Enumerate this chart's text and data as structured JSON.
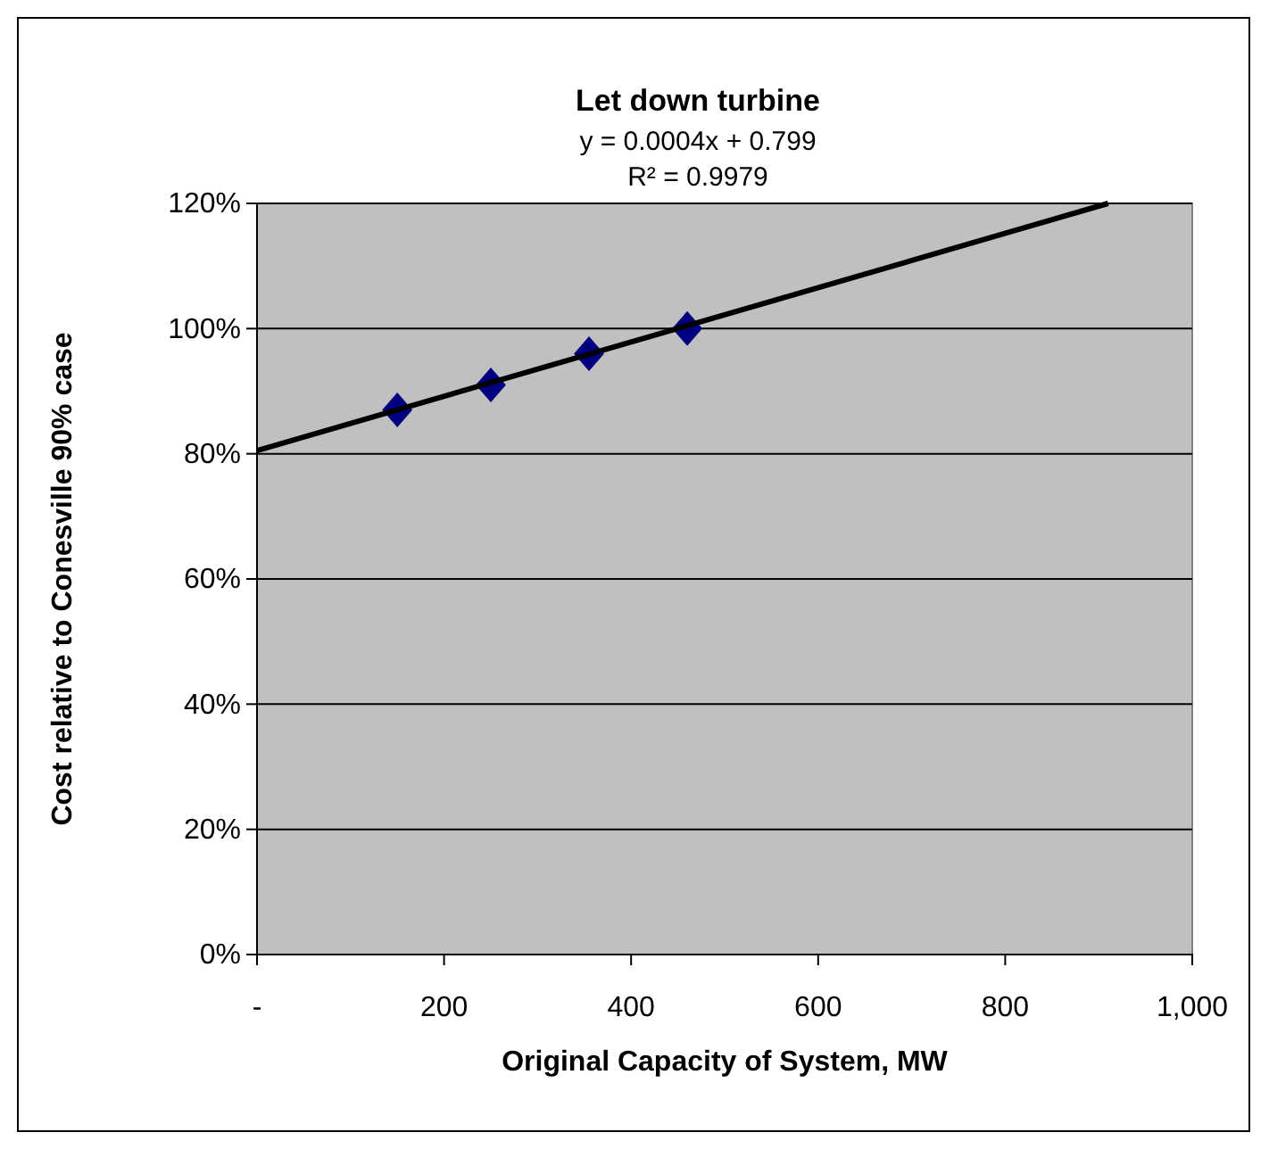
{
  "chart_data": {
    "type": "scatter",
    "title": "Let down turbine",
    "xlabel": "Original Capacity of System, MW",
    "ylabel": "Cost relative to Conesville 90% case",
    "annotations": [
      "y = 0.0004x + 0.799",
      "R² = 0.9979"
    ],
    "x": [
      150,
      250,
      355,
      460
    ],
    "series": [
      {
        "color": "#000080",
        "values": [
          0.87,
          0.91,
          0.96,
          1.0
        ],
        "marker": "diamond"
      },
      {
        "type": "line",
        "color": "#000000",
        "x": [
          0,
          910
        ],
        "values": [
          0.805,
          1.2
        ],
        "marker": "none"
      }
    ],
    "xlim": [
      0,
      1000
    ],
    "xticks": [
      {
        "value": 0,
        "label": "-"
      },
      200,
      400,
      600,
      800,
      {
        "value": 1000,
        "label": "1,000"
      }
    ],
    "ylim": [
      0,
      1.2
    ],
    "yticks": [
      {
        "value": 0,
        "label": "0%"
      },
      {
        "value": 0.2,
        "label": "20%"
      },
      {
        "value": 0.4,
        "label": "40%"
      },
      {
        "value": 0.6,
        "label": "60%"
      },
      {
        "value": 0.8,
        "label": "80%"
      },
      {
        "value": 1.0,
        "label": "100%"
      },
      {
        "value": 1.2,
        "label": "120%"
      }
    ],
    "grid": "y"
  }
}
